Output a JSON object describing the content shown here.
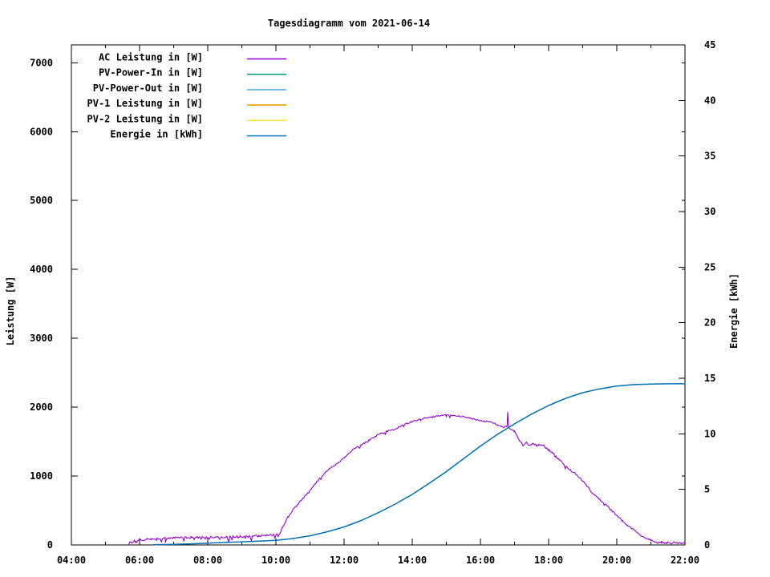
{
  "chart_data": {
    "type": "line",
    "title": "Tagesdiagramm vom 2021-06-14",
    "grid": false,
    "legend_position": "inside-top-left",
    "x_axis": {
      "unit": "hh:mm",
      "range_hours": [
        4,
        22
      ],
      "major_tick_hours": 2,
      "minor_tick_hours": 1,
      "tick_labels": [
        "04:00",
        "06:00",
        "08:00",
        "10:00",
        "12:00",
        "14:00",
        "16:00",
        "18:00",
        "20:00",
        "22:00"
      ]
    },
    "y_left_axis": {
      "label": "Leistung [W]",
      "range": [
        0,
        7260
      ],
      "tick_values": [
        0,
        1000,
        2000,
        3000,
        4000,
        5000,
        6000,
        7000
      ]
    },
    "y_right_axis": {
      "label": "Energie [kWh]",
      "range": [
        0,
        45
      ],
      "tick_values": [
        0,
        5,
        10,
        15,
        20,
        25,
        30,
        35,
        40,
        45
      ]
    },
    "series": [
      {
        "name": "AC Leistung in [W]",
        "color": "#9400d3",
        "axis": "left",
        "visible": true,
        "noise": {
          "seed": 20210614,
          "sample_step_hours": 0.03,
          "segments": [
            {
              "from": 5.68,
              "to": 10.12,
              "amp": 16,
              "dip_chance": 0.16,
              "dip_depth": 65
            },
            {
              "from": 10.12,
              "to": 16.7,
              "amp": 11,
              "dip_chance": 0.04,
              "dip_depth": 40
            },
            {
              "from": 16.7,
              "to": 20.9,
              "amp": 13,
              "dip_chance": 0.05,
              "dip_depth": 40
            },
            {
              "from": 20.9,
              "to": 22.0,
              "amp": 12,
              "dip_chance": 0.3,
              "dip_depth": 25
            }
          ]
        },
        "points": [
          [
            5.68,
            15
          ],
          [
            5.75,
            45
          ],
          [
            5.8,
            30
          ],
          [
            5.85,
            60
          ],
          [
            5.9,
            40
          ],
          [
            6.0,
            80
          ],
          [
            6.1,
            70
          ],
          [
            6.2,
            90
          ],
          [
            6.35,
            95
          ],
          [
            6.5,
            92
          ],
          [
            6.75,
            98
          ],
          [
            7.0,
            100
          ],
          [
            7.25,
            105
          ],
          [
            7.5,
            108
          ],
          [
            8.0,
            112
          ],
          [
            8.5,
            118
          ],
          [
            9.0,
            122
          ],
          [
            9.25,
            125
          ],
          [
            9.5,
            130
          ],
          [
            9.75,
            135
          ],
          [
            10.0,
            145
          ],
          [
            10.1,
            160
          ],
          [
            10.2,
            260
          ],
          [
            10.35,
            400
          ],
          [
            10.5,
            510
          ],
          [
            10.75,
            650
          ],
          [
            11.0,
            790
          ],
          [
            11.25,
            950
          ],
          [
            11.5,
            1080
          ],
          [
            11.75,
            1160
          ],
          [
            12.0,
            1270
          ],
          [
            12.25,
            1380
          ],
          [
            12.5,
            1450
          ],
          [
            12.75,
            1525
          ],
          [
            13.0,
            1600
          ],
          [
            13.25,
            1650
          ],
          [
            13.5,
            1685
          ],
          [
            13.75,
            1745
          ],
          [
            14.0,
            1790
          ],
          [
            14.25,
            1825
          ],
          [
            14.5,
            1855
          ],
          [
            14.75,
            1875
          ],
          [
            15.0,
            1885
          ],
          [
            15.25,
            1875
          ],
          [
            15.5,
            1860
          ],
          [
            15.75,
            1835
          ],
          [
            16.0,
            1805
          ],
          [
            16.25,
            1790
          ],
          [
            16.5,
            1745
          ],
          [
            16.7,
            1710
          ],
          [
            16.78,
            1720
          ],
          [
            16.8,
            1930
          ],
          [
            16.83,
            1700
          ],
          [
            17.0,
            1645
          ],
          [
            17.15,
            1510
          ],
          [
            17.25,
            1450
          ],
          [
            17.35,
            1485
          ],
          [
            17.45,
            1440
          ],
          [
            17.55,
            1470
          ],
          [
            17.7,
            1450
          ],
          [
            17.85,
            1445
          ],
          [
            18.0,
            1380
          ],
          [
            18.15,
            1330
          ],
          [
            18.3,
            1240
          ],
          [
            18.5,
            1140
          ],
          [
            18.7,
            1060
          ],
          [
            18.85,
            1010
          ],
          [
            19.0,
            930
          ],
          [
            19.15,
            845
          ],
          [
            19.3,
            745
          ],
          [
            19.5,
            660
          ],
          [
            19.7,
            575
          ],
          [
            19.85,
            500
          ],
          [
            20.0,
            430
          ],
          [
            20.15,
            355
          ],
          [
            20.3,
            285
          ],
          [
            20.5,
            220
          ],
          [
            20.65,
            155
          ],
          [
            20.8,
            110
          ],
          [
            21.0,
            70
          ],
          [
            21.1,
            45
          ],
          [
            21.2,
            28
          ],
          [
            21.3,
            45
          ],
          [
            21.4,
            22
          ],
          [
            21.5,
            45
          ],
          [
            21.6,
            28
          ],
          [
            21.7,
            40
          ],
          [
            21.8,
            22
          ],
          [
            21.9,
            35
          ],
          [
            22.0,
            18
          ]
        ]
      },
      {
        "name": "PV-Power-In in [W]",
        "color": "#009e73",
        "axis": "left",
        "visible": false,
        "points": []
      },
      {
        "name": "PV-Power-Out in [W]",
        "color": "#56b4e9",
        "axis": "left",
        "visible": false,
        "points": []
      },
      {
        "name": "PV-1 Leistung in [W]",
        "color": "#e69f00",
        "axis": "left",
        "visible": false,
        "points": []
      },
      {
        "name": "PV-2 Leistung in [W]",
        "color": "#f0e442",
        "axis": "left",
        "visible": false,
        "points": []
      },
      {
        "name": "Energie in [kWh]",
        "color": "#0072b2",
        "axis": "right",
        "visible": true,
        "points": [
          [
            6.4,
            0.02
          ],
          [
            7.0,
            0.06
          ],
          [
            7.5,
            0.1
          ],
          [
            8.0,
            0.16
          ],
          [
            8.5,
            0.22
          ],
          [
            9.0,
            0.28
          ],
          [
            9.5,
            0.34
          ],
          [
            10.0,
            0.42
          ],
          [
            10.5,
            0.58
          ],
          [
            11.0,
            0.82
          ],
          [
            11.5,
            1.18
          ],
          [
            12.0,
            1.62
          ],
          [
            12.5,
            2.2
          ],
          [
            13.0,
            2.9
          ],
          [
            13.5,
            3.68
          ],
          [
            14.0,
            4.55
          ],
          [
            14.5,
            5.55
          ],
          [
            15.0,
            6.6
          ],
          [
            15.5,
            7.75
          ],
          [
            16.0,
            8.9
          ],
          [
            16.5,
            9.95
          ],
          [
            17.0,
            10.9
          ],
          [
            17.5,
            11.78
          ],
          [
            18.0,
            12.55
          ],
          [
            18.5,
            13.2
          ],
          [
            19.0,
            13.7
          ],
          [
            19.5,
            14.05
          ],
          [
            20.0,
            14.3
          ],
          [
            20.5,
            14.43
          ],
          [
            21.0,
            14.48
          ],
          [
            21.5,
            14.5
          ],
          [
            22.0,
            14.5
          ]
        ]
      }
    ]
  }
}
